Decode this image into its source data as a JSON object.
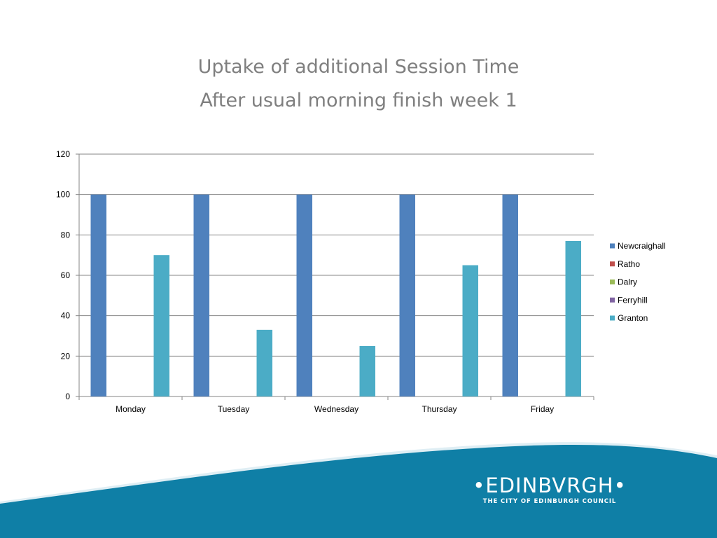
{
  "slide": {
    "title_line1": "Uptake of additional Session Time",
    "title_line2": "After usual morning finish  week 1"
  },
  "logo": {
    "main": "•EDINBVRGH•",
    "sub": "THE CITY OF EDINBURGH COUNCIL",
    "color": "#ffffff"
  },
  "colors": {
    "band": "#0f7fa6",
    "band_light": "#dfeef4"
  },
  "chart_data": {
    "type": "bar",
    "categories": [
      "Monday",
      "Tuesday",
      "Wednesday",
      "Thursday",
      "Friday"
    ],
    "series": [
      {
        "name": "Newcraighall",
        "color": "#4f81bd",
        "values": [
          100,
          100,
          100,
          100,
          100
        ]
      },
      {
        "name": "Ratho",
        "color": "#c0504d",
        "values": [
          0,
          0,
          0,
          0,
          0
        ]
      },
      {
        "name": "Dalry",
        "color": "#9bbb59",
        "values": [
          0,
          0,
          0,
          0,
          0
        ]
      },
      {
        "name": "Ferryhill",
        "color": "#8064a2",
        "values": [
          0,
          0,
          0,
          0,
          0
        ]
      },
      {
        "name": "Granton",
        "color": "#4bacc6",
        "values": [
          70,
          33,
          25,
          65,
          77
        ]
      }
    ],
    "ylim": [
      0,
      120
    ],
    "yticks": [
      0,
      20,
      40,
      60,
      80,
      100,
      120
    ],
    "grid": true,
    "legend": "right"
  }
}
